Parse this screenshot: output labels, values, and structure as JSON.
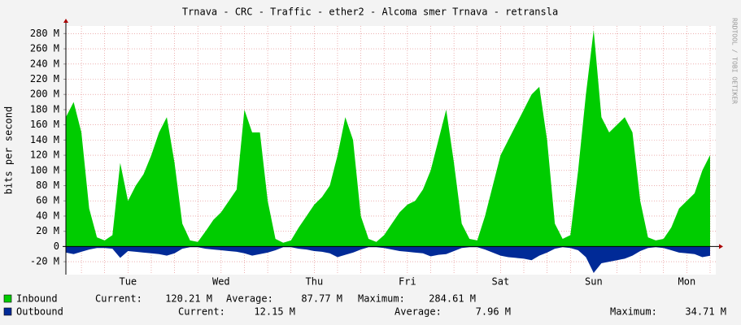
{
  "chart_data": {
    "type": "area",
    "title": "Trnava - CRC - Traffic - ether2 - Alcoma smer Trnava - retransla",
    "y_label": "bits per second",
    "watermark": "RRDTOOL / TOBI OETIKER",
    "categories": [
      null,
      null,
      null,
      null,
      null,
      null,
      null,
      null,
      "Tue",
      null,
      null,
      null,
      null,
      null,
      null,
      null,
      null,
      null,
      null,
      null,
      "Wed",
      null,
      null,
      null,
      null,
      null,
      null,
      null,
      null,
      null,
      null,
      null,
      "Thu",
      null,
      null,
      null,
      null,
      null,
      null,
      null,
      null,
      null,
      null,
      null,
      "Fri",
      null,
      null,
      null,
      null,
      null,
      null,
      null,
      null,
      null,
      null,
      null,
      "Sat",
      null,
      null,
      null,
      null,
      null,
      null,
      null,
      null,
      null,
      null,
      null,
      "Sun",
      null,
      null,
      null,
      null,
      null,
      null,
      null,
      null,
      null,
      null,
      null,
      "Mon",
      null,
      null,
      null
    ],
    "ylim": [
      -37000000.0,
      290000000.0
    ],
    "yticks": [
      {
        "value": -20000000.0,
        "label": "-20 M"
      },
      0,
      {
        "value": 20000000.0,
        "label": "20 M"
      },
      {
        "value": 40000000.0,
        "label": "40 M"
      },
      {
        "value": 60000000.0,
        "label": "60 M"
      },
      {
        "value": 80000000.0,
        "label": "80 M"
      },
      {
        "value": 100000000.0,
        "label": "100 M"
      },
      {
        "value": 120000000.0,
        "label": "120 M"
      },
      {
        "value": 140000000.0,
        "label": "140 M"
      },
      {
        "value": 160000000.0,
        "label": "160 M"
      },
      {
        "value": 180000000.0,
        "label": "180 M"
      },
      {
        "value": 200000000.0,
        "label": "200 M"
      },
      {
        "value": 220000000.0,
        "label": "220 M"
      },
      {
        "value": 240000000.0,
        "label": "240 M"
      },
      {
        "value": 260000000.0,
        "label": "260 M"
      },
      {
        "value": 280000000.0,
        "label": "280 M"
      }
    ],
    "grid": true,
    "series": [
      {
        "name": "Inbound",
        "color": "#00cc00",
        "values": [
          170000000.0,
          190000000.0,
          150000000.0,
          50000000.0,
          12000000.0,
          8000000.0,
          15000000.0,
          110000000.0,
          60000000.0,
          80000000.0,
          95000000.0,
          120000000.0,
          150000000.0,
          170000000.0,
          110000000.0,
          30000000.0,
          8000000.0,
          6000000.0,
          20000000.0,
          35000000.0,
          45000000.0,
          60000000.0,
          75000000.0,
          180000000.0,
          150000000.0,
          150000000.0,
          60000000.0,
          10000000.0,
          5000000.0,
          8000000.0,
          25000000.0,
          40000000.0,
          55000000.0,
          65000000.0,
          80000000.0,
          120000000.0,
          170000000.0,
          140000000.0,
          40000000.0,
          10000000.0,
          6000000.0,
          15000000.0,
          30000000.0,
          45000000.0,
          55000000.0,
          60000000.0,
          75000000.0,
          100000000.0,
          140000000.0,
          180000000.0,
          110000000.0,
          30000000.0,
          10000000.0,
          8000000.0,
          40000000.0,
          80000000.0,
          120000000.0,
          140000000.0,
          160000000.0,
          180000000.0,
          200000000.0,
          210000000.0,
          140000000.0,
          30000000.0,
          10000000.0,
          15000000.0,
          100000000.0,
          200000000.0,
          284610000.0,
          170000000.0,
          150000000.0,
          160000000.0,
          170000000.0,
          150000000.0,
          60000000.0,
          12000000.0,
          8000000.0,
          10000000.0,
          25000000.0,
          50000000.0,
          60000000.0,
          70000000.0,
          100000000.0,
          120210000.0
        ],
        "stats": [
          {
            "label": "Current:",
            "value": "120.21 M"
          },
          {
            "label": "Average:",
            "value": "87.77 M"
          },
          {
            "label": "Maximum:",
            "value": "284.61 M"
          }
        ]
      },
      {
        "name": "Outbound",
        "color": "#002a97",
        "values": [
          -8000000.0,
          -10000000.0,
          -7000000.0,
          -4000000.0,
          -2000000.0,
          -2000000.0,
          -3000000.0,
          -15000000.0,
          -6000000.0,
          -7000000.0,
          -8000000.0,
          -9000000.0,
          -10000000.0,
          -12000000.0,
          -9000000.0,
          -3000000.0,
          -1000000.0,
          -1000000.0,
          -3000000.0,
          -4000000.0,
          -5000000.0,
          -6000000.0,
          -7000000.0,
          -9000000.0,
          -12000000.0,
          -10000000.0,
          -8000000.0,
          -5000000.0,
          -1000000.0,
          -1000000.0,
          -3000000.0,
          -4000000.0,
          -6000000.0,
          -7000000.0,
          -9000000.0,
          -14000000.0,
          -11000000.0,
          -8000000.0,
          -4000000.0,
          -1000000.0,
          -1000000.0,
          -2000000.0,
          -4000000.0,
          -6000000.0,
          -7000000.0,
          -8000000.0,
          -9000000.0,
          -13000000.0,
          -11000000.0,
          -10000000.0,
          -6000000.0,
          -2000000.0,
          -1000000.0,
          -1000000.0,
          -4000000.0,
          -8000000.0,
          -12000000.0,
          -14000000.0,
          -15000000.0,
          -16000000.0,
          -18000000.0,
          -12000000.0,
          -8000000.0,
          -3000000.0,
          -1000000.0,
          -2000000.0,
          -5000000.0,
          -14000000.0,
          -34710000.0,
          -22000000.0,
          -20000000.0,
          -18000000.0,
          -16000000.0,
          -12000000.0,
          -6000000.0,
          -2000000.0,
          -1000000.0,
          -2000000.0,
          -5000000.0,
          -8000000.0,
          -9000000.0,
          -10000000.0,
          -14000000.0,
          -12150000.0
        ],
        "stats": [
          {
            "label": "Current:",
            "value": "12.15 M"
          },
          {
            "label": "Average:",
            "value": "7.96 M"
          },
          {
            "label": "Maximum:",
            "value": "34.71 M"
          }
        ]
      }
    ]
  }
}
